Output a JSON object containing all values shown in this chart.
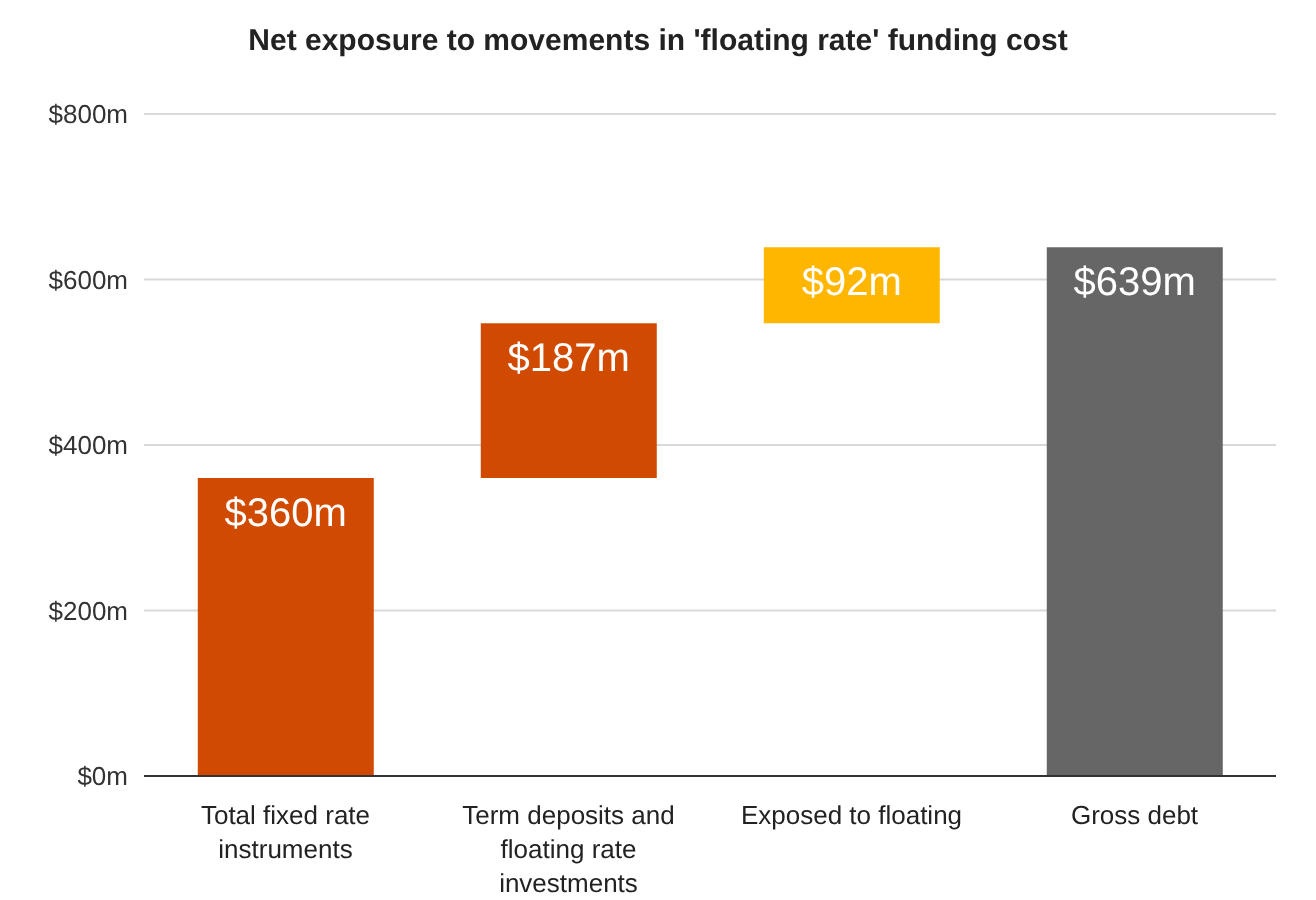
{
  "chart_data": {
    "type": "bar",
    "title": "Net exposure to movements in 'floating rate' funding cost",
    "categories": [
      "Total fixed rate instruments",
      "Term deposits and floating rate investments",
      "Exposed to floating",
      "Gross debt"
    ],
    "values": [
      360,
      187,
      92,
      639
    ],
    "base": [
      0,
      360,
      547,
      0
    ],
    "colors": [
      "#d04a02",
      "#d04a02",
      "#ffb600",
      "#666666"
    ],
    "value_labels": [
      "$360m",
      "$187m",
      "$92m",
      "$639m"
    ],
    "ylim": [
      0,
      800
    ],
    "yticks": [
      {
        "value": 0,
        "label": "$0m"
      },
      {
        "value": 200,
        "label": "$200m"
      },
      {
        "value": 400,
        "label": "$400m"
      },
      {
        "value": 600,
        "label": "$600m"
      },
      {
        "value": 800,
        "label": "$800m"
      }
    ],
    "grid": "y",
    "legend": false
  }
}
